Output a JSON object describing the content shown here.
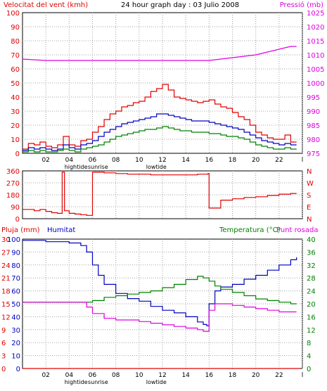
{
  "colors": {
    "background": "#ffffff",
    "frame": "#000000",
    "grid": "#a0a0a0",
    "wind": "#e00000",
    "pressure": "#e000e0",
    "gust": "#e00000",
    "average": "#0000c0",
    "lull": "#008000",
    "direction": "#e00000",
    "rain": "#e00000",
    "humidity": "#0000c0",
    "temperature": "#008000",
    "dewpoint": "#e000e0"
  },
  "chart_data": [
    {
      "type": "line",
      "title": "24 hour graph day : 03 Julio 2008",
      "ylabel_left": "Velocitat del vent (kmh)",
      "ylabel_right": "Pressió (mb)",
      "ylim_left": [
        0,
        100
      ],
      "ylim_right": [
        975,
        1025
      ],
      "yticks_left": [
        "0",
        "10",
        "20",
        "30",
        "40",
        "50",
        "60",
        "70",
        "80",
        "90",
        "100"
      ],
      "yticks_right": [
        "975",
        "980",
        "985",
        "990",
        "995",
        "1000",
        "1005",
        "1010",
        "1015",
        "1020",
        "1025"
      ],
      "xticks": [
        "02",
        "04",
        "06",
        "08",
        "10",
        "12",
        "14",
        "16",
        "18",
        "20",
        "22",
        "l"
      ],
      "x_markers": [
        "hightide",
        "sunrise",
        "lowtide"
      ],
      "grid": true,
      "series": [
        {
          "key": "gust",
          "x": [
            0,
            0.5,
            1,
            1.5,
            2,
            2.5,
            3,
            3.5,
            4,
            4.5,
            5,
            5.5,
            6,
            6.5,
            7,
            7.5,
            8,
            8.5,
            9,
            9.5,
            10,
            10.5,
            11,
            11.5,
            12,
            12.5,
            13,
            13.5,
            14,
            14.5,
            15,
            15.5,
            16,
            16.5,
            17,
            17.5,
            18,
            18.5,
            19,
            19.5,
            20,
            20.5,
            21,
            21.5,
            22,
            22.5,
            23,
            23.5
          ],
          "values": [
            3,
            7,
            6,
            8,
            5,
            4,
            6,
            12,
            6,
            5,
            9,
            10,
            15,
            19,
            24,
            28,
            30,
            33,
            34,
            36,
            37,
            40,
            44,
            46,
            49,
            45,
            40,
            39,
            38,
            37,
            36,
            37,
            38,
            35,
            33,
            32,
            29,
            26,
            24,
            20,
            15,
            13,
            11,
            10,
            10,
            13,
            8,
            8
          ]
        },
        {
          "key": "average",
          "x": [
            0,
            0.5,
            1,
            1.5,
            2,
            2.5,
            3,
            3.5,
            4,
            4.5,
            5,
            5.5,
            6,
            6.5,
            7,
            7.5,
            8,
            8.5,
            9,
            9.5,
            10,
            10.5,
            11,
            11.5,
            12,
            12.5,
            13,
            13.5,
            14,
            14.5,
            15,
            15.5,
            16,
            16.5,
            17,
            17.5,
            18,
            18.5,
            19,
            19.5,
            20,
            20.5,
            21,
            21.5,
            22,
            22.5,
            23,
            23.5
          ],
          "values": [
            2,
            4,
            3,
            4,
            3,
            2,
            3,
            6,
            4,
            3,
            6,
            7,
            9,
            12,
            15,
            17,
            19,
            21,
            22,
            23,
            24,
            25,
            26,
            28,
            28,
            27,
            26,
            25,
            24,
            23,
            23,
            23,
            22,
            21,
            20,
            19,
            18,
            17,
            15,
            13,
            11,
            9,
            8,
            7,
            6,
            7,
            6,
            6
          ]
        },
        {
          "key": "lull",
          "x": [
            0,
            0.5,
            1,
            1.5,
            2,
            2.5,
            3,
            3.5,
            4,
            4.5,
            5,
            5.5,
            6,
            6.5,
            7,
            7.5,
            8,
            8.5,
            9,
            9.5,
            10,
            10.5,
            11,
            11.5,
            12,
            12.5,
            13,
            13.5,
            14,
            14.5,
            15,
            15.5,
            16,
            16.5,
            17,
            17.5,
            18,
            18.5,
            19,
            19.5,
            20,
            20.5,
            21,
            21.5,
            22,
            22.5,
            23,
            23.5
          ],
          "values": [
            1,
            2,
            1,
            2,
            1,
            1,
            2,
            3,
            2,
            1,
            3,
            4,
            5,
            6,
            8,
            10,
            12,
            13,
            14,
            15,
            16,
            17,
            17,
            18,
            19,
            18,
            17,
            16,
            16,
            15,
            15,
            15,
            14,
            14,
            13,
            12,
            12,
            11,
            10,
            8,
            6,
            5,
            4,
            3,
            3,
            4,
            3,
            3
          ]
        },
        {
          "key": "pressure",
          "axis": "right",
          "x": [
            0,
            2,
            4,
            6,
            8,
            10,
            12,
            14,
            15,
            16,
            17,
            18,
            19,
            20,
            21,
            22,
            22.5,
            23,
            23.5
          ],
          "values": [
            1008.5,
            1008,
            1008,
            1008,
            1008,
            1008,
            1008,
            1008,
            1008,
            1008,
            1008.5,
            1009,
            1009.5,
            1010,
            1011,
            1012,
            1012.5,
            1013,
            1013
          ]
        }
      ]
    },
    {
      "type": "line",
      "ylabel_left": "",
      "ylim": [
        0,
        360
      ],
      "yticks_left": [
        "0",
        "90",
        "180",
        "270",
        "360"
      ],
      "yticks_right": [
        "N",
        "E",
        "S",
        "W",
        "N"
      ],
      "series": [
        {
          "key": "direction",
          "x": [
            0,
            0.5,
            1,
            1.5,
            2,
            2.5,
            3,
            3.4,
            3.6,
            4,
            4.5,
            5,
            5.5,
            6,
            7,
            8,
            9,
            10,
            11,
            12,
            13,
            14,
            15,
            15.9,
            16,
            17,
            18,
            19,
            20,
            21,
            22,
            23,
            23.5
          ],
          "values": [
            70,
            70,
            60,
            70,
            55,
            45,
            40,
            350,
            60,
            40,
            35,
            30,
            25,
            350,
            345,
            340,
            335,
            335,
            330,
            330,
            330,
            330,
            335,
            340,
            80,
            140,
            150,
            160,
            165,
            175,
            185,
            190,
            190
          ]
        }
      ]
    },
    {
      "type": "line",
      "ylabel_left": "Pluja (mm)",
      "ylabel_left2": "Humitat",
      "ylabel_right": "Temperatura (°C)",
      "ylabel_right2": "Punt rosada",
      "ylim_rain": [
        0,
        30
      ],
      "ylim_humidity": [
        0,
        100
      ],
      "ylim_temp": [
        0,
        40
      ],
      "yticks_rain": [
        "0",
        "3",
        "6",
        "9",
        "12",
        "15",
        "18",
        "21",
        "24",
        "27",
        "30"
      ],
      "yticks_humidity": [
        "0",
        "10",
        "20",
        "30",
        "40",
        "50",
        "60",
        "70",
        "80",
        "90",
        "100"
      ],
      "yticks_right": [
        "0",
        "4",
        "8",
        "12",
        "16",
        "20",
        "24",
        "28",
        "32",
        "36",
        "40"
      ],
      "xticks": [
        "02",
        "04",
        "06",
        "08",
        "10",
        "12",
        "14",
        "16",
        "18",
        "20",
        "22",
        "l"
      ],
      "x_markers": [
        "hightide",
        "sunrise",
        "lowtide"
      ],
      "series": [
        {
          "key": "rain",
          "axis": "rain",
          "x": [
            0,
            23.8
          ],
          "values": [
            0,
            0
          ]
        },
        {
          "key": "humidity",
          "axis": "humidity",
          "x": [
            0,
            2,
            4,
            5,
            5.5,
            6,
            6.5,
            7,
            8,
            9,
            10,
            11,
            12,
            13,
            14,
            15,
            15.5,
            15.8,
            16,
            16.5,
            17,
            18,
            19,
            20,
            21,
            22,
            23,
            23.5
          ],
          "values": [
            99,
            98,
            97,
            95,
            90,
            80,
            72,
            65,
            58,
            54,
            52,
            48,
            45,
            43,
            40,
            36,
            34,
            33,
            50,
            60,
            63,
            65,
            69,
            72,
            76,
            80,
            84,
            86
          ]
        },
        {
          "key": "temperature",
          "axis": "temp",
          "x": [
            0,
            2,
            4,
            5,
            6,
            7,
            8,
            9,
            10,
            11,
            12,
            13,
            14,
            15,
            15.5,
            16,
            16.5,
            17,
            18,
            19,
            20,
            21,
            22,
            23,
            23.5
          ],
          "values": [
            20.5,
            20.5,
            20.5,
            20.5,
            21,
            22,
            22.5,
            23,
            23.5,
            24,
            25,
            26,
            27.5,
            28.5,
            28,
            27,
            25.5,
            24.5,
            23.5,
            22.5,
            21.5,
            21,
            20.5,
            20,
            20
          ]
        },
        {
          "key": "dewpoint",
          "axis": "temp",
          "x": [
            0,
            2,
            4,
            5,
            5.5,
            6,
            7,
            8,
            9,
            10,
            11,
            12,
            13,
            14,
            15,
            15.5,
            15.9,
            16,
            16.5,
            17,
            18,
            19,
            20,
            21,
            22,
            23,
            23.5
          ],
          "values": [
            20.5,
            20.5,
            20.5,
            20.5,
            19,
            17,
            15.5,
            15,
            15,
            14.5,
            14,
            13.5,
            13,
            12.5,
            12,
            11.5,
            11.5,
            18,
            20,
            20,
            19.5,
            19,
            18.5,
            18,
            17.5,
            17.5,
            17.5
          ]
        }
      ]
    }
  ]
}
